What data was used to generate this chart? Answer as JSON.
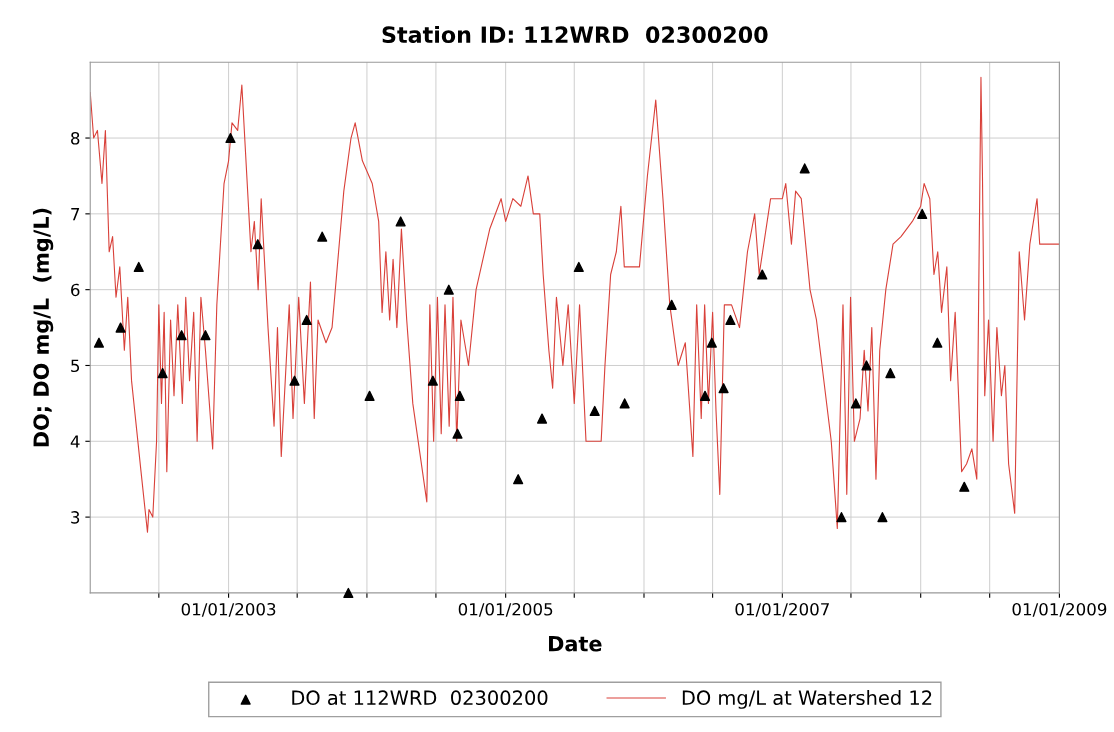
{
  "chart_data": {
    "type": "line",
    "title": "Station ID: 112WRD  02300200",
    "xlabel": "Date",
    "ylabel": "DO; DO mg/L  (mg/L)",
    "xlim": [
      "2002-01-01",
      "2009-01-01"
    ],
    "xticks": [
      {
        "value": "2002-07-01",
        "label": null
      },
      {
        "value": "2003-01-01",
        "label": "01/01/2003"
      },
      {
        "value": "2003-07-01",
        "label": null
      },
      {
        "value": "2004-01-01",
        "label": null
      },
      {
        "value": "2004-07-01",
        "label": null
      },
      {
        "value": "2005-01-01",
        "label": "01/01/2005"
      },
      {
        "value": "2005-07-01",
        "label": null
      },
      {
        "value": "2006-01-01",
        "label": null
      },
      {
        "value": "2006-07-01",
        "label": null
      },
      {
        "value": "2007-01-01",
        "label": "01/01/2007"
      },
      {
        "value": "2007-07-01",
        "label": null
      },
      {
        "value": "2008-01-01",
        "label": null
      },
      {
        "value": "2008-07-01",
        "label": null
      },
      {
        "value": "2009-01-01",
        "label": "01/01/2009"
      }
    ],
    "ylim": [
      2,
      9
    ],
    "yticks": [
      3,
      4,
      5,
      6,
      7,
      8
    ],
    "grid": true,
    "legend": "bottom",
    "series": [
      {
        "name": "DO at 112WRD  02300200",
        "type": "scatter",
        "marker": "triangle",
        "color": "#000000",
        "x": [
          "2002-01-24",
          "2002-03-22",
          "2002-05-09",
          "2002-07-11",
          "2002-08-30",
          "2002-11-01",
          "2003-01-06",
          "2003-03-19",
          "2003-06-24",
          "2003-07-26",
          "2003-09-05",
          "2003-11-13",
          "2004-01-08",
          "2004-03-30",
          "2004-06-23",
          "2004-08-04",
          "2004-08-27",
          "2004-09-02",
          "2005-02-03",
          "2005-04-07",
          "2005-07-13",
          "2005-08-24",
          "2005-11-11",
          "2006-03-15",
          "2006-06-11",
          "2006-06-29",
          "2006-07-30",
          "2006-08-17",
          "2006-11-09",
          "2007-03-01",
          "2007-06-06",
          "2007-07-14",
          "2007-08-11",
          "2007-09-22",
          "2007-10-13",
          "2008-01-05",
          "2008-02-14",
          "2008-04-25"
        ],
        "values": [
          5.3,
          5.5,
          6.3,
          4.9,
          5.4,
          5.4,
          8.0,
          6.6,
          4.8,
          5.6,
          6.7,
          2.0,
          4.6,
          6.9,
          4.8,
          6.0,
          4.1,
          4.6,
          3.5,
          4.3,
          6.3,
          4.4,
          4.5,
          5.8,
          4.6,
          5.3,
          4.7,
          5.6,
          6.2,
          7.6,
          3.0,
          4.5,
          5.0,
          3.0,
          4.9,
          7.0,
          5.3,
          3.4
        ]
      },
      {
        "name": "DO mg/L at Watershed 12",
        "color": "#d9413a",
        "x": [
          "2002-01-01",
          "2002-01-10",
          "2002-01-20",
          "2002-02-01",
          "2002-02-10",
          "2002-02-20",
          "2002-03-01",
          "2002-03-10",
          "2002-03-20",
          "2002-04-01",
          "2002-04-10",
          "2002-04-20",
          "2002-05-15",
          "2002-06-01",
          "2002-06-05",
          "2002-06-15",
          "2002-06-25",
          "2002-07-01",
          "2002-07-08",
          "2002-07-15",
          "2002-07-22",
          "2002-08-01",
          "2002-08-10",
          "2002-08-20",
          "2002-09-01",
          "2002-09-10",
          "2002-09-20",
          "2002-10-01",
          "2002-10-10",
          "2002-10-20",
          "2002-11-01",
          "2002-11-20",
          "2002-12-01",
          "2002-12-20",
          "2003-01-01",
          "2003-01-10",
          "2003-01-25",
          "2003-02-05",
          "2003-03-01",
          "2003-03-10",
          "2003-03-20",
          "2003-03-28",
          "2003-04-15",
          "2003-05-01",
          "2003-05-10",
          "2003-05-20",
          "2003-06-10",
          "2003-06-20",
          "2003-07-05",
          "2003-07-20",
          "2003-08-05",
          "2003-08-15",
          "2003-08-25",
          "2003-09-15",
          "2003-10-01",
          "2003-11-01",
          "2003-11-20",
          "2003-12-01",
          "2003-12-20",
          "2004-01-15",
          "2004-02-01",
          "2004-02-10",
          "2004-02-20",
          "2004-03-01",
          "2004-03-10",
          "2004-03-20",
          "2004-04-01",
          "2004-04-15",
          "2004-05-01",
          "2004-06-07",
          "2004-06-15",
          "2004-06-25",
          "2004-07-05",
          "2004-07-15",
          "2004-07-25",
          "2004-08-05",
          "2004-08-15",
          "2004-08-25",
          "2004-09-05",
          "2004-09-25",
          "2004-10-15",
          "2004-11-20",
          "2004-12-20",
          "2005-01-01",
          "2005-01-20",
          "2005-02-10",
          "2005-03-01",
          "2005-03-15",
          "2005-04-01",
          "2005-04-10",
          "2005-04-25",
          "2005-05-05",
          "2005-05-15",
          "2005-06-01",
          "2005-06-15",
          "2005-07-01",
          "2005-07-15",
          "2005-08-01",
          "2005-08-20",
          "2005-09-10",
          "2005-09-20",
          "2005-10-05",
          "2005-10-20",
          "2005-11-01",
          "2005-11-10",
          "2005-12-20",
          "2006-01-10",
          "2006-02-01",
          "2006-02-20",
          "2006-03-10",
          "2006-04-01",
          "2006-04-20",
          "2006-05-10",
          "2006-05-20",
          "2006-06-01",
          "2006-06-10",
          "2006-06-20",
          "2006-07-01",
          "2006-07-10",
          "2006-07-20",
          "2006-08-01",
          "2006-08-20",
          "2006-09-10",
          "2006-10-01",
          "2006-10-20",
          "2006-11-01",
          "2006-12-01",
          "2007-01-01",
          "2007-01-10",
          "2007-01-25",
          "2007-02-05",
          "2007-02-20",
          "2007-03-15",
          "2007-04-01",
          "2007-05-10",
          "2007-05-26",
          "2007-06-10",
          "2007-06-20",
          "2007-06-30",
          "2007-07-10",
          "2007-07-25",
          "2007-08-05",
          "2007-08-15",
          "2007-08-25",
          "2007-09-05",
          "2007-09-15",
          "2007-10-01",
          "2007-10-20",
          "2007-11-10",
          "2007-12-10",
          "2008-01-01",
          "2008-01-10",
          "2008-01-25",
          "2008-02-05",
          "2008-02-15",
          "2008-02-25",
          "2008-03-10",
          "2008-03-20",
          "2008-04-01",
          "2008-04-18",
          "2008-05-01",
          "2008-05-15",
          "2008-05-28",
          "2008-06-08",
          "2008-06-12",
          "2008-06-18",
          "2008-06-28",
          "2008-07-10",
          "2008-07-20",
          "2008-08-01",
          "2008-08-10",
          "2008-08-20",
          "2008-09-05",
          "2008-09-17",
          "2008-10-01",
          "2008-10-15",
          "2008-11-03",
          "2008-11-10",
          "2008-12-31"
        ],
        "values": [
          8.6,
          8.0,
          8.1,
          7.4,
          8.1,
          6.5,
          6.7,
          5.9,
          6.3,
          5.2,
          5.9,
          4.8,
          3.6,
          2.8,
          3.1,
          3.0,
          4.0,
          5.8,
          4.5,
          5.7,
          3.6,
          5.6,
          4.6,
          5.8,
          4.5,
          5.9,
          4.8,
          5.7,
          4.0,
          5.9,
          5.2,
          3.9,
          5.8,
          7.4,
          7.7,
          8.2,
          8.1,
          8.7,
          6.5,
          6.9,
          6.0,
          7.2,
          5.5,
          4.2,
          5.5,
          3.8,
          5.8,
          4.3,
          5.9,
          4.5,
          6.1,
          4.3,
          5.6,
          5.3,
          5.5,
          7.3,
          8.0,
          8.2,
          7.7,
          7.4,
          6.9,
          5.7,
          6.5,
          5.6,
          6.4,
          5.5,
          6.8,
          5.6,
          4.5,
          3.2,
          5.8,
          4.0,
          5.9,
          4.1,
          5.8,
          4.2,
          5.9,
          4.0,
          5.6,
          5.0,
          6.0,
          6.8,
          7.2,
          6.9,
          7.2,
          7.1,
          7.5,
          7.0,
          7.0,
          6.2,
          5.2,
          4.7,
          5.9,
          5.0,
          5.8,
          4.5,
          5.8,
          4.0,
          4.0,
          4.0,
          5.0,
          6.2,
          6.5,
          7.1,
          6.3,
          6.3,
          7.5,
          8.5,
          7.2,
          5.8,
          5.0,
          5.3,
          3.8,
          5.8,
          4.3,
          5.8,
          4.5,
          5.7,
          4.4,
          3.3,
          5.8,
          5.8,
          5.5,
          6.5,
          7.0,
          6.2,
          7.2,
          7.2,
          7.4,
          6.6,
          7.3,
          7.2,
          6.0,
          5.6,
          4.0,
          2.85,
          5.8,
          3.3,
          5.9,
          4.0,
          4.3,
          5.2,
          4.4,
          5.5,
          3.5,
          5.2,
          6.0,
          6.6,
          6.7,
          6.9,
          7.1,
          7.4,
          7.2,
          6.2,
          6.5,
          5.7,
          6.3,
          4.8,
          5.7,
          3.6,
          3.7,
          3.9,
          3.5,
          8.8,
          7.5,
          4.6,
          5.6,
          4.0,
          5.5,
          4.6,
          5.0,
          3.7,
          3.05,
          6.5,
          5.6,
          6.6,
          7.2,
          6.6,
          6.6
        ]
      }
    ]
  }
}
